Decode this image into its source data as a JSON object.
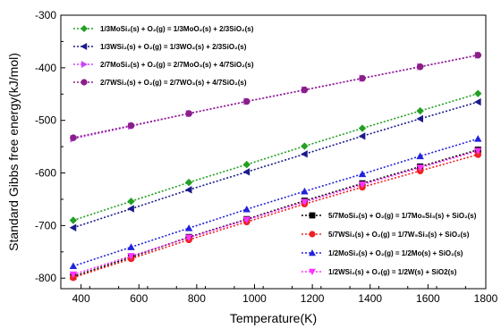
{
  "chart_data": {
    "type": "line",
    "title": "",
    "xlabel": "Temperature(K)",
    "ylabel": "Standard Gibbs free energy(kJ/mol)",
    "xlim": [
      330,
      1800
    ],
    "ylim": [
      -820,
      -300
    ],
    "xticks": [
      400,
      600,
      800,
      1000,
      1200,
      1400,
      1600,
      1800
    ],
    "yticks": [
      -800,
      -700,
      -600,
      -500,
      -400,
      -300
    ],
    "grid": false,
    "x": [
      373,
      573,
      773,
      973,
      1173,
      1373,
      1573,
      1773
    ],
    "legend_groups": [
      {
        "placement": "top-left",
        "series_indices": [
          0,
          1,
          2,
          3
        ]
      },
      {
        "placement": "bottom-right",
        "series_indices": [
          4,
          5,
          6,
          7
        ]
      }
    ],
    "series": [
      {
        "name": "1/3MoSi₂(s) + O₂(g) = 1/3MoO₂(s) + 2/3SiO₂(s)",
        "color": "#22a022",
        "marker": "diamond",
        "values": [
          -690,
          -654,
          -618,
          -584,
          -549,
          -515,
          -482,
          -449
        ]
      },
      {
        "name": "1/3WSi₂(s) + O₂(g) = 1/3WO₂(s) + 2/3SiO₂(s)",
        "color": "#1a1a8c",
        "marker": "triangle-left",
        "values": [
          -704,
          -668,
          -632,
          -598,
          -564,
          -530,
          -497,
          -465
        ]
      },
      {
        "name": "2/7MoSi₂(s) + O₂(g) = 2/7MoO₃(s) + 4/7SiO₂(s)",
        "color": "#cc44ff",
        "marker": "triangle-right",
        "values": [
          -535,
          -511,
          -487,
          -464,
          -442,
          -420,
          -398,
          -376
        ]
      },
      {
        "name": "2/7WSi₂(s) + O₂(g) = 2/7WO₃(s) + 4/7SiO₂(s)",
        "color": "#8a1f8a",
        "marker": "circle",
        "values": [
          -533,
          -510,
          -487,
          -464,
          -442,
          -420,
          -398,
          -376
        ]
      },
      {
        "name": "5/7MoSi₂(s) + O₂(g) = 1/7Mo₅Si₃(s) + SiO₂(s)",
        "color": "#000000",
        "marker": "square",
        "values": [
          -797,
          -760,
          -722,
          -688,
          -653,
          -620,
          -588,
          -556
        ]
      },
      {
        "name": "5/7WSi₂(s) + O₂(g) = 1/7W₅Si₃(s) + SiO₂(s)",
        "color": "#ee2222",
        "marker": "circle",
        "values": [
          -799,
          -763,
          -727,
          -693,
          -659,
          -627,
          -596,
          -565
        ]
      },
      {
        "name": "1/2MoSi₂(s) + O₂(g) = 1/2Mo(s) + SiO₂(s)",
        "color": "#2222dd",
        "marker": "triangle-up",
        "values": [
          -777,
          -741,
          -705,
          -669,
          -635,
          -602,
          -568,
          -535
        ]
      },
      {
        "name": "1/2WSi₂(s) + O₂(g) = 1/2W(s) + SiO2(s)",
        "color": "#ff33ff",
        "marker": "triangle-down",
        "values": [
          -793,
          -758,
          -723,
          -689,
          -655,
          -622,
          -590,
          -558
        ]
      }
    ]
  }
}
